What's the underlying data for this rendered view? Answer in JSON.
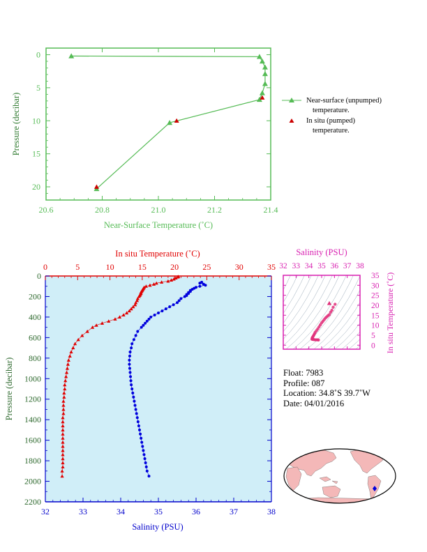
{
  "chart_data": [
    {
      "type": "line",
      "xlabel": "Near-Surface Temperature (˚C)",
      "ylabel": "Pressure (decibar)",
      "xlim": [
        20.6,
        21.4
      ],
      "ylim": [
        22,
        -1
      ],
      "x_ticks": [
        "20.6",
        "20.8",
        "21.0",
        "21.2",
        "21.4"
      ],
      "y_ticks": [
        "0",
        "5",
        "10",
        "15",
        "20"
      ],
      "legend_position": "right",
      "series": [
        {
          "name": "Near-surface (unpumped) temperature.",
          "color": "#55bb55",
          "marker": "triangle",
          "x": [
            20.69,
            21.36,
            21.37,
            21.38,
            21.38,
            21.38,
            21.37,
            21.36,
            21.04,
            20.78
          ],
          "y": [
            0.2,
            0.3,
            1.0,
            1.9,
            2.9,
            4.4,
            5.8,
            6.8,
            10.3,
            20.3
          ]
        },
        {
          "name": "In situ (pumped) temperature.",
          "color": "#cc0000",
          "marker": "triangle",
          "x": [
            21.37,
            21.065,
            20.78
          ],
          "y": [
            6.5,
            10.0,
            20.0
          ]
        }
      ],
      "legend_lines": [
        [
          "Near-surface (unpumped)",
          "temperature."
        ],
        [
          "In situ (pumped)",
          "temperature."
        ]
      ]
    },
    {
      "type": "scatter",
      "title": "In situ Temperature (˚C)",
      "xlabel": "Salinity (PSU)",
      "ylabel": "Pressure (decibar)",
      "temp_xlim": [
        0,
        35
      ],
      "sal_xlim": [
        32,
        38
      ],
      "ylim": [
        2200,
        0
      ],
      "temp_ticks": [
        "0",
        "5",
        "10",
        "15",
        "20",
        "25",
        "30",
        "35"
      ],
      "sal_ticks": [
        "32",
        "33",
        "34",
        "35",
        "36",
        "37",
        "38"
      ],
      "y_ticks": [
        "0",
        "200",
        "400",
        "600",
        "800",
        "1000",
        "1200",
        "1400",
        "1600",
        "1800",
        "2000",
        "2200"
      ],
      "background": "#d0eef8",
      "temperature_series": {
        "color": "#e00000",
        "marker": "triangle",
        "pressure": [
          6,
          10,
          20,
          30,
          40,
          50,
          60,
          70,
          80,
          90,
          100,
          110,
          120,
          130,
          140,
          150,
          160,
          170,
          180,
          190,
          200,
          220,
          240,
          260,
          280,
          300,
          320,
          340,
          360,
          380,
          400,
          420,
          440,
          460,
          480,
          500,
          540,
          580,
          620,
          660,
          700,
          740,
          780,
          820,
          860,
          900,
          940,
          980,
          1020,
          1060,
          1100,
          1140,
          1180,
          1220,
          1260,
          1300,
          1340,
          1380,
          1420,
          1460,
          1500,
          1540,
          1580,
          1620,
          1660,
          1700,
          1740,
          1780,
          1820,
          1860,
          1900,
          1950
        ],
        "values": [
          20.6,
          20.5,
          20.2,
          19.9,
          19.5,
          19.0,
          18.0,
          17.2,
          16.8,
          16.2,
          15.6,
          15.3,
          15.2,
          15.1,
          15.0,
          14.9,
          14.8,
          14.8,
          14.7,
          14.6,
          14.5,
          14.3,
          14.2,
          14.0,
          13.9,
          13.6,
          13.3,
          13.0,
          12.6,
          12.1,
          11.5,
          10.8,
          9.8,
          8.8,
          7.9,
          7.3,
          6.5,
          5.7,
          5.1,
          4.6,
          4.3,
          4.0,
          3.8,
          3.6,
          3.5,
          3.4,
          3.3,
          3.2,
          3.1,
          3.0,
          3.0,
          2.9,
          2.9,
          2.8,
          2.8,
          2.8,
          2.8,
          2.7,
          2.7,
          2.7,
          2.7,
          2.7,
          2.7,
          2.7,
          2.7,
          2.7,
          2.7,
          2.7,
          2.7,
          2.7,
          2.6,
          2.6
        ]
      },
      "salinity_series": {
        "color": "#0000dd",
        "marker": "circle",
        "pressure": [
          60,
          70,
          80,
          90,
          100,
          110,
          120,
          130,
          140,
          150,
          160,
          170,
          180,
          190,
          200,
          220,
          240,
          260,
          280,
          300,
          320,
          340,
          360,
          380,
          400,
          420,
          440,
          460,
          480,
          500,
          540,
          580,
          620,
          660,
          700,
          740,
          780,
          820,
          860,
          900,
          940,
          980,
          1020,
          1060,
          1100,
          1140,
          1180,
          1220,
          1260,
          1300,
          1340,
          1380,
          1420,
          1460,
          1500,
          1540,
          1580,
          1620,
          1660,
          1700,
          1740,
          1780,
          1820,
          1860,
          1900,
          1950
        ],
        "values": [
          36.15,
          36.1,
          36.2,
          36.25,
          36.1,
          36.0,
          35.95,
          35.9,
          35.85,
          35.85,
          35.8,
          35.8,
          35.75,
          35.75,
          35.7,
          35.6,
          35.55,
          35.5,
          35.4,
          35.3,
          35.2,
          35.1,
          35.0,
          34.9,
          34.8,
          34.75,
          34.7,
          34.65,
          34.6,
          34.55,
          34.45,
          34.4,
          34.35,
          34.3,
          34.28,
          34.25,
          34.24,
          34.23,
          34.23,
          34.24,
          34.25,
          34.26,
          34.27,
          34.28,
          34.3,
          34.32,
          34.34,
          34.36,
          34.38,
          34.4,
          34.42,
          34.44,
          34.46,
          34.48,
          34.5,
          34.52,
          34.54,
          34.56,
          34.58,
          34.6,
          34.62,
          34.64,
          34.66,
          34.68,
          34.7,
          34.75
        ]
      }
    },
    {
      "type": "scatter",
      "title": "Salinity (PSU)",
      "ylabel": "In situ Temperature (˚C)",
      "xlim": [
        32,
        38
      ],
      "ylim": [
        -2,
        35
      ],
      "x_ticks": [
        "32",
        "33",
        "34",
        "35",
        "36",
        "37",
        "38"
      ],
      "y_ticks": [
        "0",
        "5",
        "10",
        "15",
        "20",
        "25",
        "30",
        "35"
      ],
      "color": "#e0307a",
      "salinity": [
        36.05,
        35.9,
        35.8,
        35.7,
        35.6,
        35.5,
        35.4,
        35.3,
        35.2,
        35.1,
        35.0,
        34.9,
        34.8,
        34.7,
        34.6,
        34.5,
        34.45,
        34.4,
        34.35,
        34.3,
        34.27,
        34.25,
        34.25,
        34.3,
        34.4,
        34.5,
        34.6,
        34.7,
        34.75,
        35.6
      ],
      "temperature": [
        20.5,
        19.0,
        17.5,
        16.5,
        15.3,
        14.8,
        14.2,
        13.6,
        12.8,
        12.0,
        11.2,
        10.2,
        9.2,
        8.2,
        7.3,
        6.5,
        5.8,
        5.2,
        4.6,
        4.1,
        3.7,
        3.3,
        3.0,
        2.9,
        2.8,
        2.7,
        2.7,
        2.7,
        2.6,
        21.0
      ]
    }
  ],
  "float_info": {
    "float": "Float:  7983",
    "profile": "Profile:  087",
    "location": "Location:  34.8˚S  39.7˚W",
    "date": "Date:  04/01/2016"
  },
  "map": {
    "land_color": "#f4b8b8",
    "ocean_color": "#ffffff",
    "marker_color": "#0000dd"
  }
}
